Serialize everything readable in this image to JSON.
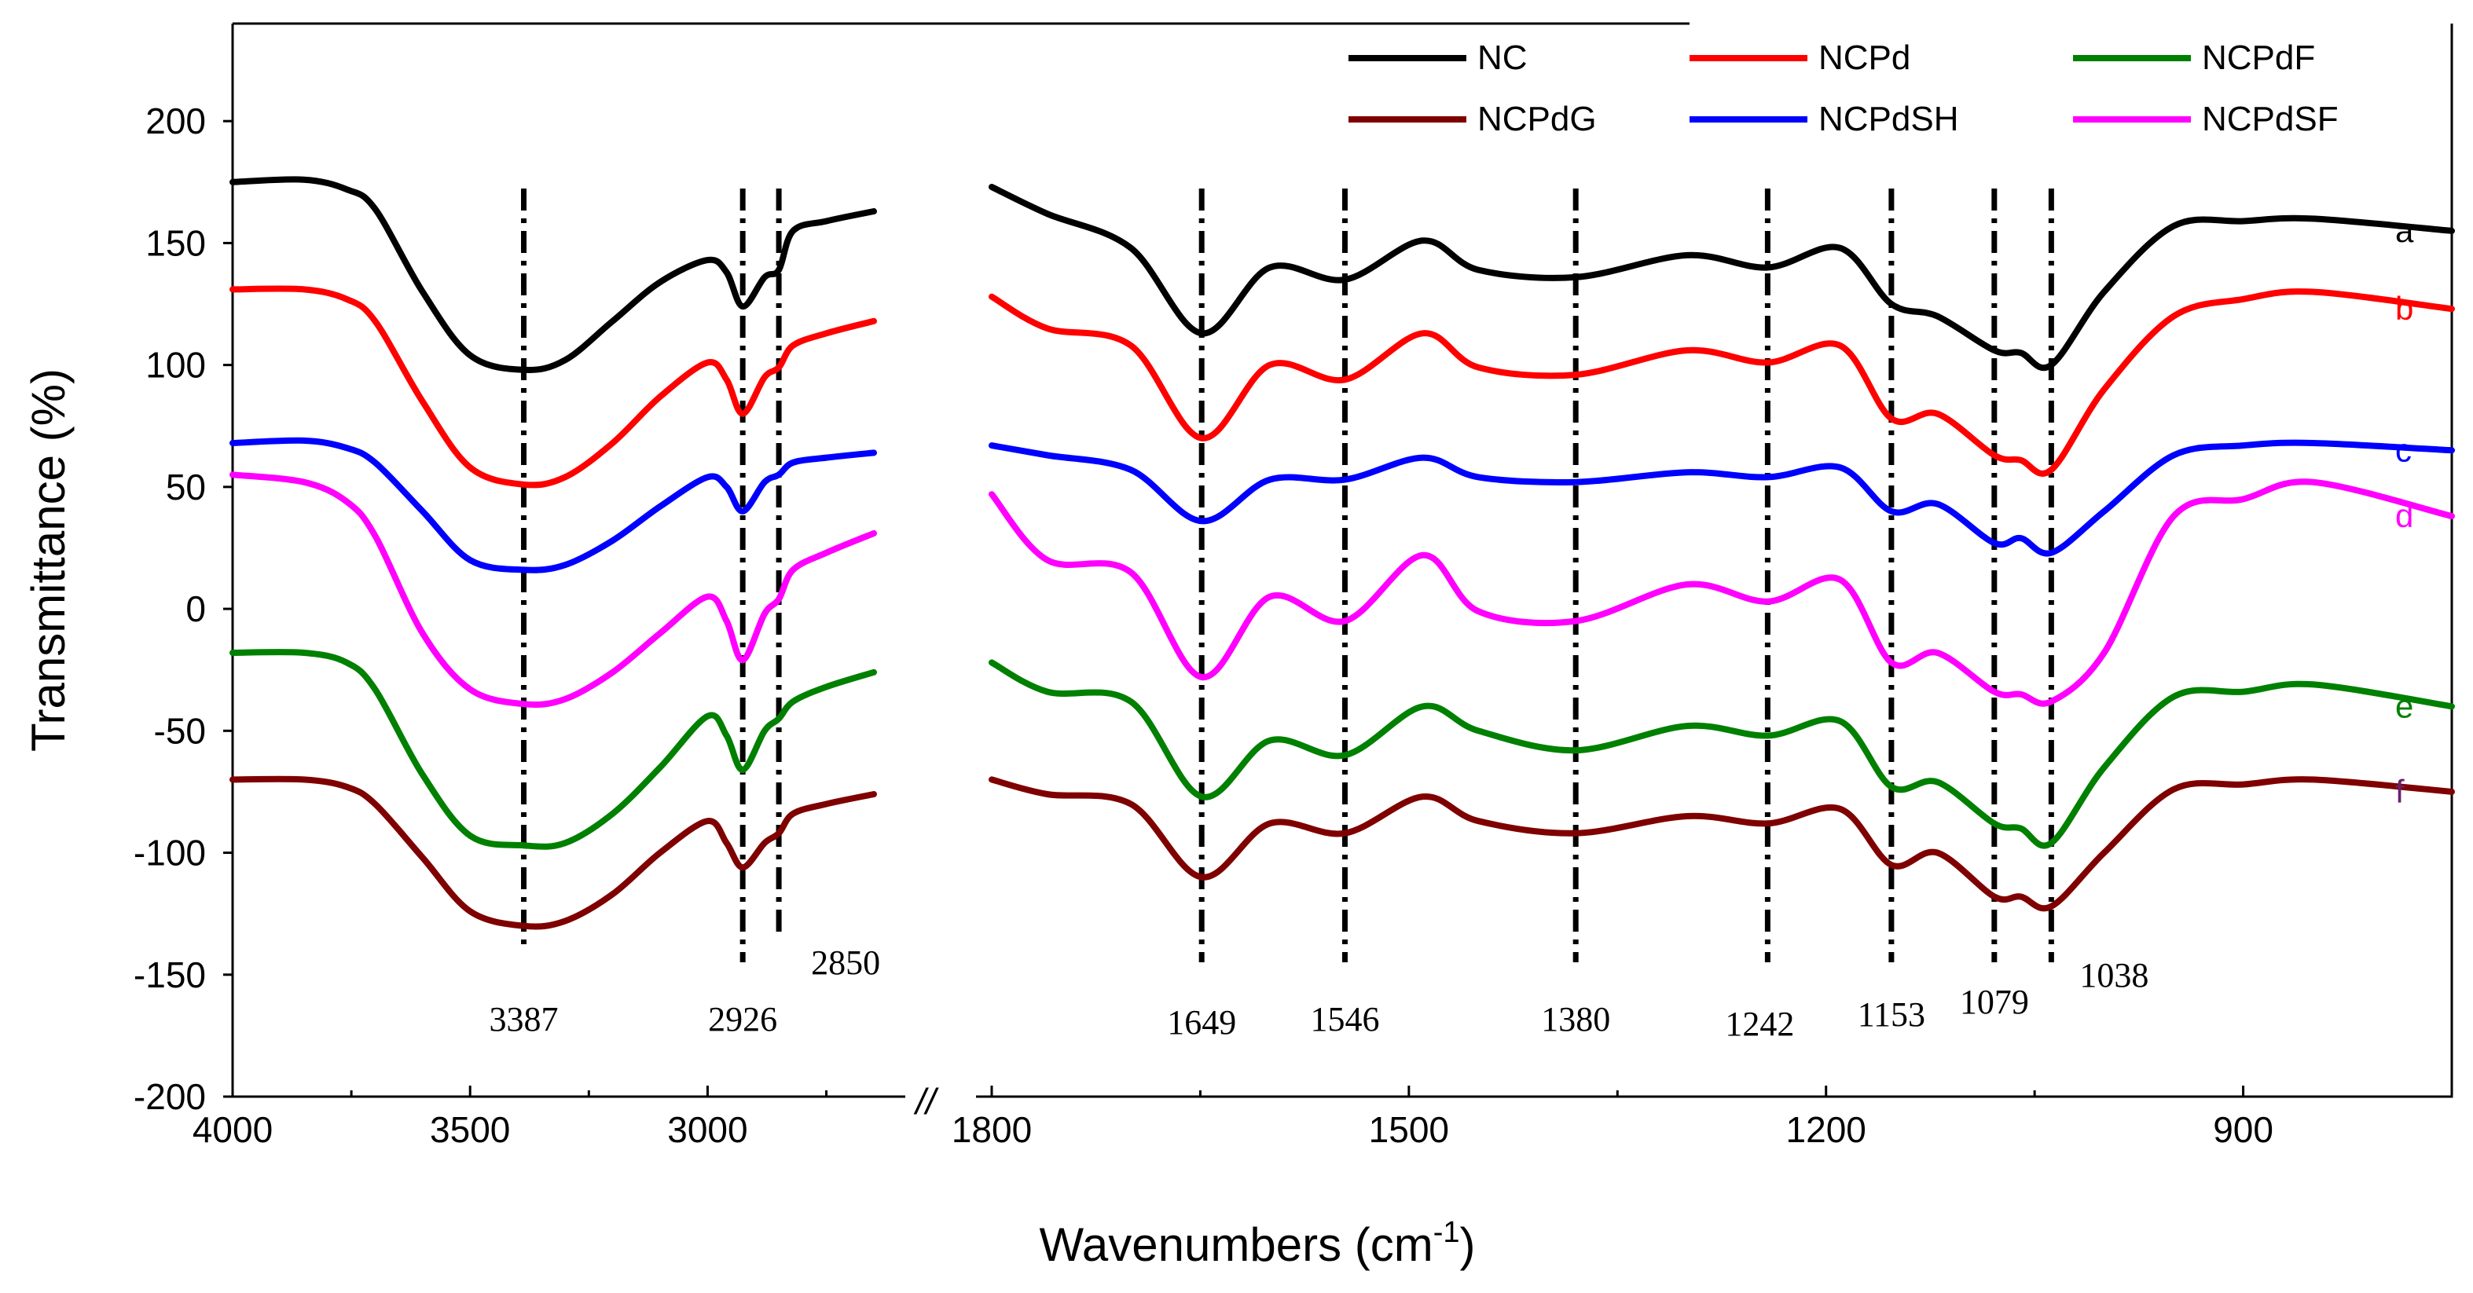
{
  "chart_data": {
    "type": "line",
    "title": "",
    "xlabel": "Wavenumbers (cm",
    "xlabel_sup": "-1",
    "xlabel_close": ")",
    "ylabel": "Transmittance (%)",
    "ylim": [
      -200,
      240
    ],
    "yticks": [
      200,
      150,
      100,
      50,
      0,
      -50,
      -100,
      -150,
      -200
    ],
    "xaxis_break_symbol": "//",
    "xaxis_break": [
      2650,
      1800
    ],
    "x_segments": [
      {
        "range": [
          4000,
          2650
        ],
        "ticks": [
          4000,
          3500,
          3000
        ]
      },
      {
        "range": [
          1800,
          750
        ],
        "ticks": [
          1800,
          1500,
          1200,
          900
        ]
      }
    ],
    "peak_markers": [
      {
        "x": 3387,
        "label": "3387"
      },
      {
        "x": 2926,
        "label": "2926"
      },
      {
        "x": 2850,
        "label": "2850"
      },
      {
        "x": 1649,
        "label": "1649"
      },
      {
        "x": 1546,
        "label": "1546"
      },
      {
        "x": 1380,
        "label": "1380"
      },
      {
        "x": 1242,
        "label": "1242"
      },
      {
        "x": 1153,
        "label": "1153"
      },
      {
        "x": 1079,
        "label": "1079"
      },
      {
        "x": 1038,
        "label": "1038"
      }
    ],
    "legend": {
      "placement": "top-right",
      "entries": [
        "NC",
        "NCPd",
        "NCPdF",
        "NCPdG",
        "NCPdSH",
        "NCPdSF"
      ]
    },
    "series": [
      {
        "name": "NC",
        "curve_label": "a",
        "color": "#000000",
        "x": [
          4000,
          3850,
          3760,
          3700,
          3600,
          3500,
          3387,
          3300,
          3200,
          3100,
          3000,
          2960,
          2926,
          2880,
          2850,
          2820,
          2750,
          2650,
          1800,
          1760,
          1700,
          1649,
          1600,
          1546,
          1490,
          1450,
          1380,
          1300,
          1242,
          1190,
          1153,
          1120,
          1079,
          1060,
          1038,
          1000,
          950,
          900,
          850,
          750
        ],
        "values": [
          175,
          176,
          172,
          164,
          130,
          104,
          98,
          102,
          118,
          134,
          143,
          138,
          124,
          136,
          139,
          155,
          159,
          163,
          173,
          162,
          148,
          113,
          140,
          135,
          151,
          139,
          136,
          145,
          140,
          148,
          125,
          120,
          106,
          105,
          100,
          130,
          157,
          159,
          160,
          155
        ]
      },
      {
        "name": "NCPd",
        "curve_label": "b",
        "color": "#ff0000",
        "x": [
          4000,
          3850,
          3760,
          3700,
          3600,
          3500,
          3387,
          3300,
          3200,
          3100,
          3000,
          2960,
          2926,
          2880,
          2850,
          2820,
          2750,
          2650,
          1800,
          1760,
          1700,
          1649,
          1600,
          1546,
          1490,
          1450,
          1380,
          1300,
          1242,
          1190,
          1153,
          1120,
          1079,
          1060,
          1038,
          1000,
          950,
          900,
          850,
          750
        ],
        "values": [
          131,
          131,
          127,
          118,
          85,
          58,
          51,
          54,
          68,
          87,
          101,
          94,
          80,
          95,
          99,
          108,
          113,
          118,
          128,
          115,
          108,
          70,
          100,
          94,
          113,
          99,
          96,
          106,
          101,
          108,
          78,
          80,
          63,
          61,
          57,
          90,
          120,
          127,
          130,
          123
        ]
      },
      {
        "name": "NCPdSH",
        "curve_label": "c",
        "color": "#0000ff",
        "x": [
          4000,
          3850,
          3760,
          3700,
          3600,
          3500,
          3387,
          3300,
          3200,
          3100,
          3000,
          2960,
          2926,
          2880,
          2850,
          2820,
          2750,
          2650,
          1800,
          1760,
          1700,
          1649,
          1600,
          1546,
          1490,
          1450,
          1380,
          1300,
          1242,
          1190,
          1153,
          1120,
          1079,
          1060,
          1038,
          1000,
          950,
          900,
          850,
          750
        ],
        "values": [
          68,
          69,
          66,
          60,
          40,
          20,
          16,
          18,
          28,
          42,
          54,
          50,
          40,
          52,
          55,
          60,
          62,
          64,
          67,
          63,
          57,
          36,
          53,
          53,
          62,
          54,
          52,
          56,
          54,
          58,
          40,
          43,
          27,
          29,
          23,
          40,
          63,
          67,
          68,
          65
        ]
      },
      {
        "name": "NCPdSF",
        "curve_label": "d",
        "color": "#ff00ff",
        "x": [
          4000,
          3850,
          3760,
          3700,
          3600,
          3500,
          3387,
          3300,
          3200,
          3100,
          3000,
          2960,
          2926,
          2880,
          2850,
          2820,
          2750,
          2650,
          1800,
          1760,
          1700,
          1649,
          1600,
          1546,
          1490,
          1450,
          1380,
          1300,
          1242,
          1190,
          1153,
          1120,
          1079,
          1060,
          1038,
          1000,
          950,
          900,
          850,
          750
        ],
        "values": [
          55,
          52,
          44,
          30,
          -10,
          -33,
          -39,
          -37,
          -26,
          -10,
          5,
          -5,
          -21,
          -2,
          4,
          16,
          23,
          31,
          47,
          20,
          15,
          -28,
          5,
          -5,
          22,
          -1,
          -5,
          10,
          3,
          12,
          -22,
          -18,
          -34,
          -35,
          -38,
          -18,
          38,
          45,
          52,
          38
        ]
      },
      {
        "name": "NCPdF",
        "curve_label": "e",
        "color": "#008000",
        "x": [
          4000,
          3850,
          3760,
          3700,
          3600,
          3500,
          3387,
          3300,
          3200,
          3100,
          3000,
          2960,
          2926,
          2880,
          2850,
          2820,
          2750,
          2650,
          1800,
          1760,
          1700,
          1649,
          1600,
          1546,
          1490,
          1450,
          1380,
          1300,
          1242,
          1190,
          1153,
          1120,
          1079,
          1060,
          1038,
          1000,
          950,
          900,
          850,
          750
        ],
        "values": [
          -18,
          -18,
          -22,
          -33,
          -68,
          -93,
          -97,
          -96,
          -84,
          -65,
          -44,
          -52,
          -66,
          -50,
          -45,
          -38,
          -32,
          -26,
          -22,
          -34,
          -38,
          -77,
          -54,
          -60,
          -40,
          -50,
          -58,
          -48,
          -52,
          -46,
          -73,
          -71,
          -88,
          -90,
          -96,
          -65,
          -36,
          -34,
          -31,
          -40
        ]
      },
      {
        "name": "NCPdG",
        "curve_label": "f",
        "color": "#7f0000",
        "x": [
          4000,
          3850,
          3760,
          3700,
          3600,
          3500,
          3387,
          3300,
          3200,
          3100,
          3000,
          2960,
          2926,
          2880,
          2850,
          2820,
          2750,
          2650,
          1800,
          1760,
          1700,
          1649,
          1600,
          1546,
          1490,
          1450,
          1380,
          1300,
          1242,
          1190,
          1153,
          1120,
          1079,
          1060,
          1038,
          1000,
          950,
          900,
          850,
          750
        ],
        "values": [
          -70,
          -70,
          -73,
          -80,
          -102,
          -124,
          -130,
          -128,
          -117,
          -100,
          -87,
          -96,
          -106,
          -96,
          -92,
          -84,
          -80,
          -76,
          -70,
          -76,
          -80,
          -110,
          -88,
          -92,
          -77,
          -87,
          -92,
          -85,
          -88,
          -82,
          -105,
          -100,
          -118,
          -118,
          -122,
          -100,
          -74,
          -72,
          -70,
          -75
        ]
      }
    ]
  }
}
